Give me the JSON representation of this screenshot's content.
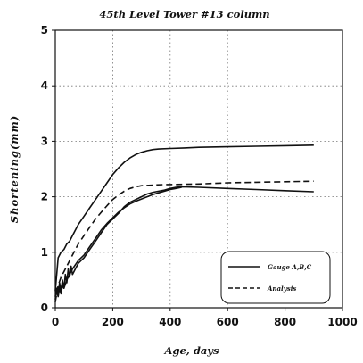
{
  "chart_data": {
    "type": "line",
    "title": "45th Level Tower #13 column",
    "xlabel": "Age, days",
    "ylabel": "Shortening(mm)",
    "xlim": [
      0,
      1000
    ],
    "ylim": [
      0,
      5
    ],
    "xticks": [
      0,
      200,
      400,
      600,
      800,
      1000
    ],
    "yticks": [
      0,
      1,
      2,
      3,
      4,
      5
    ],
    "grid": "dotted",
    "legend_position": "bottom-right",
    "series": [
      {
        "name": "Gauge A,B,C",
        "style": "solid",
        "color": "#111111",
        "x": [
          0,
          5,
          10,
          15,
          20,
          25,
          30,
          35,
          40,
          45,
          50,
          55,
          60,
          70,
          80,
          90,
          100,
          120,
          140,
          160,
          180,
          200,
          220,
          240,
          260,
          280,
          300,
          320,
          340,
          360,
          380,
          400,
          420,
          440,
          500,
          600,
          700,
          800,
          900
        ],
        "y": [
          0.2,
          0.35,
          0.25,
          0.45,
          0.3,
          0.5,
          0.35,
          0.6,
          0.45,
          0.7,
          0.55,
          0.75,
          0.6,
          0.7,
          0.8,
          0.85,
          0.9,
          1.05,
          1.2,
          1.35,
          1.5,
          1.6,
          1.7,
          1.82,
          1.9,
          1.95,
          2.0,
          2.05,
          2.08,
          2.1,
          2.12,
          2.15,
          2.17,
          2.18,
          2.17,
          2.15,
          2.13,
          2.11,
          2.09
        ]
      },
      {
        "name": "",
        "style": "solid",
        "color": "#111111",
        "x": [
          0,
          5,
          10,
          20,
          30,
          40,
          50,
          60,
          80,
          100,
          120,
          140,
          160,
          180,
          200,
          220,
          240,
          260,
          280,
          300,
          320,
          340,
          360,
          400,
          450,
          500,
          600,
          700,
          800,
          900
        ],
        "y": [
          0.3,
          0.6,
          0.9,
          1.0,
          1.05,
          1.15,
          1.2,
          1.3,
          1.5,
          1.65,
          1.8,
          1.95,
          2.1,
          2.25,
          2.4,
          2.52,
          2.62,
          2.7,
          2.76,
          2.8,
          2.83,
          2.85,
          2.86,
          2.87,
          2.88,
          2.89,
          2.9,
          2.91,
          2.92,
          2.93
        ]
      },
      {
        "name": "",
        "style": "solid",
        "color": "#111111",
        "x": [
          0,
          5,
          10,
          15,
          20,
          25,
          30,
          40,
          50,
          60,
          80,
          100,
          120,
          140,
          160,
          180,
          200,
          220,
          240,
          260,
          280,
          300,
          320,
          340,
          360,
          380,
          400,
          420,
          440
        ],
        "y": [
          0.15,
          0.3,
          0.2,
          0.35,
          0.25,
          0.4,
          0.35,
          0.5,
          0.6,
          0.7,
          0.85,
          0.95,
          1.1,
          1.25,
          1.4,
          1.52,
          1.62,
          1.72,
          1.8,
          1.87,
          1.92,
          1.96,
          2.0,
          2.04,
          2.07,
          2.1,
          2.13,
          2.15,
          2.17
        ]
      },
      {
        "name": "Analysis",
        "style": "dashed",
        "color": "#111111",
        "x": [
          0,
          5,
          10,
          20,
          30,
          40,
          50,
          60,
          80,
          100,
          120,
          140,
          160,
          180,
          200,
          220,
          240,
          260,
          280,
          300,
          340,
          380,
          400,
          500,
          600,
          700,
          800,
          900
        ],
        "y": [
          0.1,
          0.25,
          0.4,
          0.55,
          0.65,
          0.75,
          0.85,
          0.95,
          1.15,
          1.3,
          1.45,
          1.6,
          1.72,
          1.84,
          1.95,
          2.03,
          2.1,
          2.15,
          2.18,
          2.2,
          2.21,
          2.22,
          2.22,
          2.23,
          2.25,
          2.26,
          2.27,
          2.28
        ]
      }
    ],
    "legend": [
      {
        "label": "Gauge A,B,C",
        "style": "solid"
      },
      {
        "label": "Analysis",
        "style": "dashed"
      }
    ]
  }
}
